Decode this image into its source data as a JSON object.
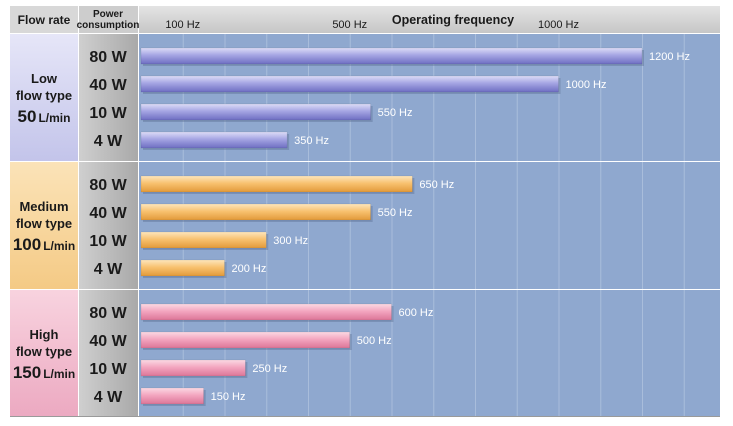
{
  "header": {
    "flow_rate": "Flow rate",
    "power_line1": "Power",
    "power_line2": "consumption",
    "frequency": "Operating frequency"
  },
  "colors": {
    "plot_bg": "#8fa8cf",
    "header_bg": "#d2d2d2",
    "power_col_bg": "#b7b7b7",
    "low_bar": "#8f8fd8",
    "medium_bar": "#f4b55c",
    "high_bar": "#ef96b4",
    "low_label_bg": "#cccdef",
    "medium_label_bg": "#f7d59a",
    "high_label_bg": "#f2b7cb"
  },
  "chart_data": {
    "type": "bar",
    "orientation": "horizontal",
    "title": "",
    "xlabel": "Operating frequency",
    "unit": "Hz",
    "xlim": [
      0,
      1400
    ],
    "x_ticks": [
      {
        "value": 100,
        "label": "100 Hz"
      },
      {
        "value": 500,
        "label": "500 Hz"
      },
      {
        "value": 1000,
        "label": "1000 Hz"
      }
    ],
    "grid": true,
    "groups": [
      {
        "key": "low",
        "line1": "Low",
        "line2": "flow type",
        "amount": "50",
        "unit": "L/min",
        "bars": [
          {
            "power": "80 W",
            "value": 1200,
            "label": "1200 Hz"
          },
          {
            "power": "40 W",
            "value": 1000,
            "label": "1000 Hz"
          },
          {
            "power": "10 W",
            "value": 550,
            "label": "550 Hz"
          },
          {
            "power": "4 W",
            "value": 350,
            "label": "350 Hz"
          }
        ]
      },
      {
        "key": "medium",
        "line1": "Medium",
        "line2": "flow type",
        "amount": "100",
        "unit": "L/min",
        "bars": [
          {
            "power": "80 W",
            "value": 650,
            "label": "650 Hz"
          },
          {
            "power": "40 W",
            "value": 550,
            "label": "550 Hz"
          },
          {
            "power": "10 W",
            "value": 300,
            "label": "300 Hz"
          },
          {
            "power": "4 W",
            "value": 200,
            "label": "200 Hz"
          }
        ]
      },
      {
        "key": "high",
        "line1": "High",
        "line2": "flow type",
        "amount": "150",
        "unit": "L/min",
        "bars": [
          {
            "power": "80 W",
            "value": 600,
            "label": "600 Hz"
          },
          {
            "power": "40 W",
            "value": 500,
            "label": "500 Hz"
          },
          {
            "power": "10 W",
            "value": 250,
            "label": "250 Hz"
          },
          {
            "power": "4 W",
            "value": 150,
            "label": "150 Hz"
          }
        ]
      }
    ]
  }
}
